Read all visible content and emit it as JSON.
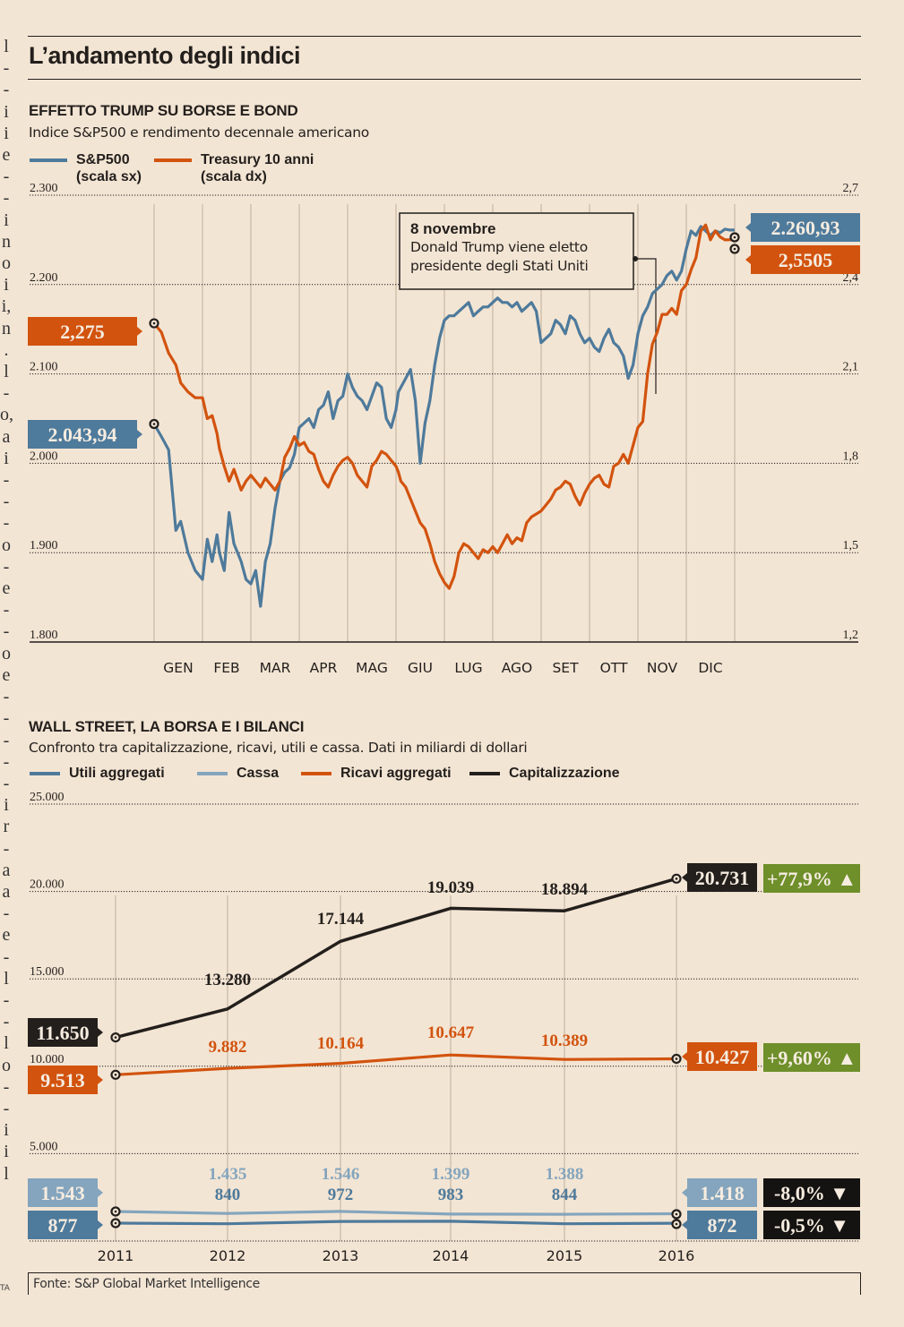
{
  "page": {
    "title": "L’andamento degli indici",
    "source": "Fonte: S&P Global Market Intelligence",
    "margin_glyphs": [
      "l",
      "-",
      "-",
      "i",
      "i",
      "e",
      "-",
      "-",
      "i",
      "n",
      "o",
      "i",
      "i,",
      "n",
      ".",
      "l",
      "-",
      "o,",
      "a",
      "i",
      "-",
      "-",
      "-",
      "o",
      "-",
      "e",
      "-",
      "-",
      "o",
      "e",
      "-",
      "-",
      "-",
      "-",
      "-",
      "i",
      "r",
      "-",
      "a",
      "a",
      "-",
      "e",
      "-",
      "l",
      "-",
      "-",
      "l",
      "o",
      "-",
      "-",
      "i",
      "i",
      "l"
    ],
    "margin_tag": "TA"
  },
  "colors": {
    "sp500": "#4e7a9b",
    "treasury": "#d2530e",
    "utili": "#4e7a9b",
    "cassa": "#84a5bd",
    "ricavi": "#d2530e",
    "capitalizzazione": "#231f1c",
    "positive": "#6e8f2a",
    "negative": "#151311",
    "background": "#f3e5d4"
  },
  "chart_data": [
    {
      "type": "line",
      "title": "EFFETTO TRUMP SU BORSE E BOND",
      "subtitle": "Indice S&P500 e rendimento decennale americano",
      "legend": [
        {
          "name": "S&P500",
          "note": "(scala sx)"
        },
        {
          "name": "Treasury 10 anni",
          "note": "(scala dx)"
        }
      ],
      "legend_placement": "top-left",
      "x_tick_labels": [
        "GEN",
        "FEB",
        "MAR",
        "APR",
        "MAG",
        "GIU",
        "LUG",
        "AGO",
        "SET",
        "OTT",
        "NOV",
        "DIC"
      ],
      "y_left": {
        "label": "S&P500",
        "ticks": [
          1800,
          1900,
          2000,
          2100,
          2200,
          2300
        ],
        "tick_labels": [
          "1.800",
          "1.900",
          "2.000",
          "2.100",
          "2.200",
          "2.300"
        ],
        "range": [
          1800,
          2300
        ]
      },
      "y_right": {
        "label": "Treasury 10 anni",
        "ticks": [
          1.2,
          1.5,
          1.8,
          2.1,
          2.4,
          2.7
        ],
        "tick_labels": [
          "1,2",
          "1,5",
          "1,8",
          "2,1",
          "2,4",
          "2,7"
        ],
        "range": [
          1.2,
          2.7
        ]
      },
      "grid": true,
      "x_range_months": [
        0,
        12
      ],
      "series": [
        {
          "name": "S&P500",
          "axis": "left",
          "start_label": "2.043,94",
          "end_label": "2.260,93",
          "x_month": [
            0,
            0.15,
            0.3,
            0.45,
            0.55,
            0.7,
            0.85,
            1.0,
            1.1,
            1.2,
            1.3,
            1.35,
            1.45,
            1.55,
            1.65,
            1.8,
            1.9,
            2.0,
            2.1,
            2.2,
            2.3,
            2.4,
            2.5,
            2.6,
            2.7,
            2.8,
            2.9,
            3.0,
            3.1,
            3.2,
            3.3,
            3.4,
            3.5,
            3.6,
            3.7,
            3.8,
            3.9,
            4.0,
            4.1,
            4.2,
            4.3,
            4.4,
            4.5,
            4.6,
            4.7,
            4.8,
            4.9,
            5.0,
            5.05,
            5.1,
            5.2,
            5.3,
            5.4,
            5.5,
            5.6,
            5.7,
            5.8,
            5.9,
            6.0,
            6.1,
            6.2,
            6.3,
            6.4,
            6.5,
            6.6,
            6.7,
            6.8,
            6.9,
            7.0,
            7.1,
            7.2,
            7.3,
            7.4,
            7.5,
            7.6,
            7.7,
            7.8,
            7.9,
            8.0,
            8.1,
            8.2,
            8.3,
            8.4,
            8.5,
            8.6,
            8.7,
            8.8,
            8.9,
            9.0,
            9.1,
            9.2,
            9.3,
            9.4,
            9.5,
            9.6,
            9.7,
            9.8,
            9.9,
            10.0,
            10.1,
            10.2,
            10.3,
            10.4,
            10.5,
            10.6,
            10.7,
            10.8,
            10.9,
            11.0,
            11.1,
            11.2,
            11.3,
            11.4,
            11.5,
            11.6,
            11.7,
            11.8,
            11.9,
            12.0
          ],
          "values": [
            2044,
            2030,
            2015,
            1925,
            1935,
            1900,
            1880,
            1870,
            1915,
            1890,
            1920,
            1900,
            1880,
            1945,
            1910,
            1890,
            1870,
            1865,
            1880,
            1840,
            1890,
            1910,
            1950,
            1980,
            1990,
            1995,
            2010,
            2040,
            2045,
            2050,
            2040,
            2060,
            2065,
            2080,
            2050,
            2070,
            2075,
            2100,
            2085,
            2075,
            2070,
            2060,
            2075,
            2090,
            2085,
            2050,
            2040,
            2060,
            2080,
            2085,
            2095,
            2105,
            2070,
            2000,
            2045,
            2070,
            2110,
            2140,
            2160,
            2165,
            2165,
            2170,
            2175,
            2180,
            2165,
            2170,
            2175,
            2175,
            2180,
            2185,
            2180,
            2180,
            2175,
            2180,
            2170,
            2175,
            2180,
            2170,
            2135,
            2140,
            2145,
            2160,
            2155,
            2145,
            2165,
            2160,
            2145,
            2135,
            2140,
            2130,
            2125,
            2140,
            2150,
            2135,
            2130,
            2120,
            2095,
            2110,
            2145,
            2165,
            2175,
            2190,
            2195,
            2200,
            2210,
            2215,
            2205,
            2215,
            2240,
            2260,
            2255,
            2265,
            2260,
            2255,
            2260,
            2258,
            2262,
            2261,
            2261
          ]
        },
        {
          "name": "Treasury 10 anni",
          "axis": "right",
          "start_label": "2,275",
          "end_label": "2,5505",
          "x_month": [
            0,
            0.15,
            0.3,
            0.45,
            0.55,
            0.7,
            0.85,
            1.0,
            1.1,
            1.2,
            1.3,
            1.35,
            1.45,
            1.55,
            1.65,
            1.8,
            1.9,
            2.0,
            2.1,
            2.2,
            2.3,
            2.4,
            2.5,
            2.6,
            2.7,
            2.8,
            2.9,
            3.0,
            3.1,
            3.2,
            3.3,
            3.4,
            3.5,
            3.6,
            3.7,
            3.8,
            3.9,
            4.0,
            4.1,
            4.2,
            4.3,
            4.4,
            4.5,
            4.6,
            4.7,
            4.8,
            4.9,
            5.0,
            5.05,
            5.1,
            5.2,
            5.3,
            5.4,
            5.5,
            5.6,
            5.7,
            5.8,
            5.9,
            6.0,
            6.1,
            6.2,
            6.3,
            6.4,
            6.5,
            6.6,
            6.7,
            6.8,
            6.9,
            7.0,
            7.1,
            7.2,
            7.3,
            7.4,
            7.5,
            7.6,
            7.7,
            7.8,
            7.9,
            8.0,
            8.1,
            8.2,
            8.3,
            8.4,
            8.5,
            8.6,
            8.7,
            8.8,
            8.9,
            9.0,
            9.1,
            9.2,
            9.3,
            9.4,
            9.5,
            9.6,
            9.7,
            9.8,
            9.9,
            10.0,
            10.1,
            10.2,
            10.3,
            10.4,
            10.5,
            10.6,
            10.7,
            10.8,
            10.9,
            11.0,
            11.1,
            11.2,
            11.3,
            11.4,
            11.5,
            11.6,
            11.7,
            11.8,
            11.9,
            12.0
          ],
          "values": [
            2.27,
            2.24,
            2.17,
            2.13,
            2.07,
            2.04,
            2.02,
            2.02,
            1.95,
            1.96,
            1.9,
            1.85,
            1.79,
            1.74,
            1.78,
            1.71,
            1.74,
            1.76,
            1.74,
            1.72,
            1.75,
            1.73,
            1.71,
            1.74,
            1.82,
            1.85,
            1.89,
            1.86,
            1.87,
            1.84,
            1.83,
            1.78,
            1.74,
            1.72,
            1.76,
            1.79,
            1.81,
            1.82,
            1.8,
            1.76,
            1.74,
            1.72,
            1.79,
            1.81,
            1.84,
            1.83,
            1.81,
            1.79,
            1.77,
            1.74,
            1.72,
            1.68,
            1.64,
            1.6,
            1.58,
            1.53,
            1.47,
            1.43,
            1.4,
            1.38,
            1.42,
            1.5,
            1.53,
            1.52,
            1.5,
            1.48,
            1.51,
            1.5,
            1.52,
            1.5,
            1.53,
            1.56,
            1.53,
            1.55,
            1.54,
            1.6,
            1.62,
            1.63,
            1.64,
            1.66,
            1.68,
            1.71,
            1.72,
            1.74,
            1.73,
            1.69,
            1.66,
            1.7,
            1.73,
            1.75,
            1.76,
            1.73,
            1.72,
            1.79,
            1.8,
            1.83,
            1.8,
            1.86,
            1.92,
            1.94,
            2.1,
            2.2,
            2.24,
            2.3,
            2.3,
            2.32,
            2.3,
            2.38,
            2.4,
            2.45,
            2.49,
            2.58,
            2.6,
            2.55,
            2.58,
            2.56,
            2.55,
            2.5505,
            2.5505
          ]
        }
      ],
      "annotation": {
        "title": "8 novembre",
        "text_line1": "Donald Trump viene eletto",
        "text_line2": "presidente degli Stati Uniti",
        "x_month": 10.3
      }
    },
    {
      "type": "line",
      "title": "WALL STREET, LA BORSA E I BILANCI",
      "subtitle": "Confronto tra capitalizzazione, ricavi, utili e cassa. Dati in miliardi di dollari",
      "legend": [
        "Utili aggregati",
        "Cassa",
        "Ricavi aggregati",
        "Capitalizzazione"
      ],
      "legend_placement": "top-left",
      "categories": [
        "2011",
        "2012",
        "2013",
        "2014",
        "2015",
        "2016"
      ],
      "y_ticks": [
        5000,
        10000,
        15000,
        20000,
        25000
      ],
      "y_tick_labels": [
        "5.000",
        "10.000",
        "15.000",
        "20.000",
        "25.000"
      ],
      "ylim": [
        0,
        25000
      ],
      "grid": true,
      "series": [
        {
          "name": "Capitalizzazione",
          "values": [
            11650,
            13280,
            17144,
            19039,
            18894,
            20731
          ],
          "labels": [
            "11.650",
            "13.280",
            "17.144",
            "19.039",
            "18.894",
            "20.731"
          ],
          "change": "+77,9%",
          "direction": "up"
        },
        {
          "name": "Ricavi aggregati",
          "values": [
            9513,
            9882,
            10164,
            10647,
            10389,
            10427
          ],
          "labels": [
            "9.513",
            "9.882",
            "10.164",
            "10.647",
            "10.389",
            "10.427"
          ],
          "change": "+9,60%",
          "direction": "up"
        },
        {
          "name": "Cassa",
          "values": [
            1543,
            1435,
            1546,
            1399,
            1388,
            1418
          ],
          "labels": [
            "1.543",
            "1.435",
            "1.546",
            "1.399",
            "1.388",
            "1.418"
          ],
          "change": "-8,0%",
          "direction": "down"
        },
        {
          "name": "Utili aggregati",
          "values": [
            877,
            840,
            972,
            983,
            844,
            872
          ],
          "labels": [
            "877",
            "840",
            "972",
            "983",
            "844",
            "872"
          ],
          "change": "-0,5%",
          "direction": "down"
        }
      ]
    }
  ]
}
